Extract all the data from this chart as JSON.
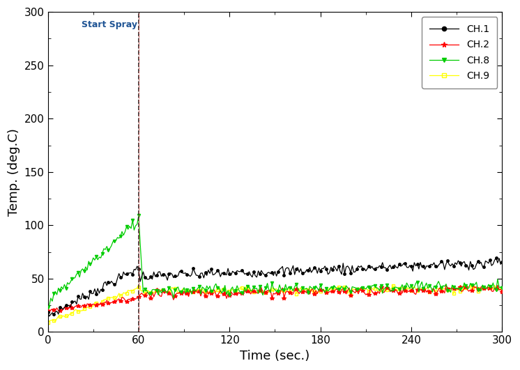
{
  "title": "",
  "xlabel": "Time (sec.)",
  "ylabel": "Temp. (deg.C)",
  "xlim": [
    0,
    300
  ],
  "ylim": [
    0,
    300
  ],
  "xticks": [
    0,
    60,
    120,
    180,
    240,
    300
  ],
  "yticks": [
    0,
    50,
    100,
    150,
    200,
    250,
    300
  ],
  "spray_x": 60,
  "spray_label": "Start Spray",
  "spray_line_color_black": "#222222",
  "spray_line_color_red": "#c0504d",
  "spray_text_color": "#1f5494",
  "background_color": "#ffffff",
  "channels": {
    "CH.1": {
      "color": "#000000"
    },
    "CH.2": {
      "color": "#ff0000"
    },
    "CH.8": {
      "color": "#00cc00"
    },
    "CH.9": {
      "color": "#ffff00"
    }
  },
  "figsize": [
    7.46,
    5.31
  ],
  "dpi": 100
}
